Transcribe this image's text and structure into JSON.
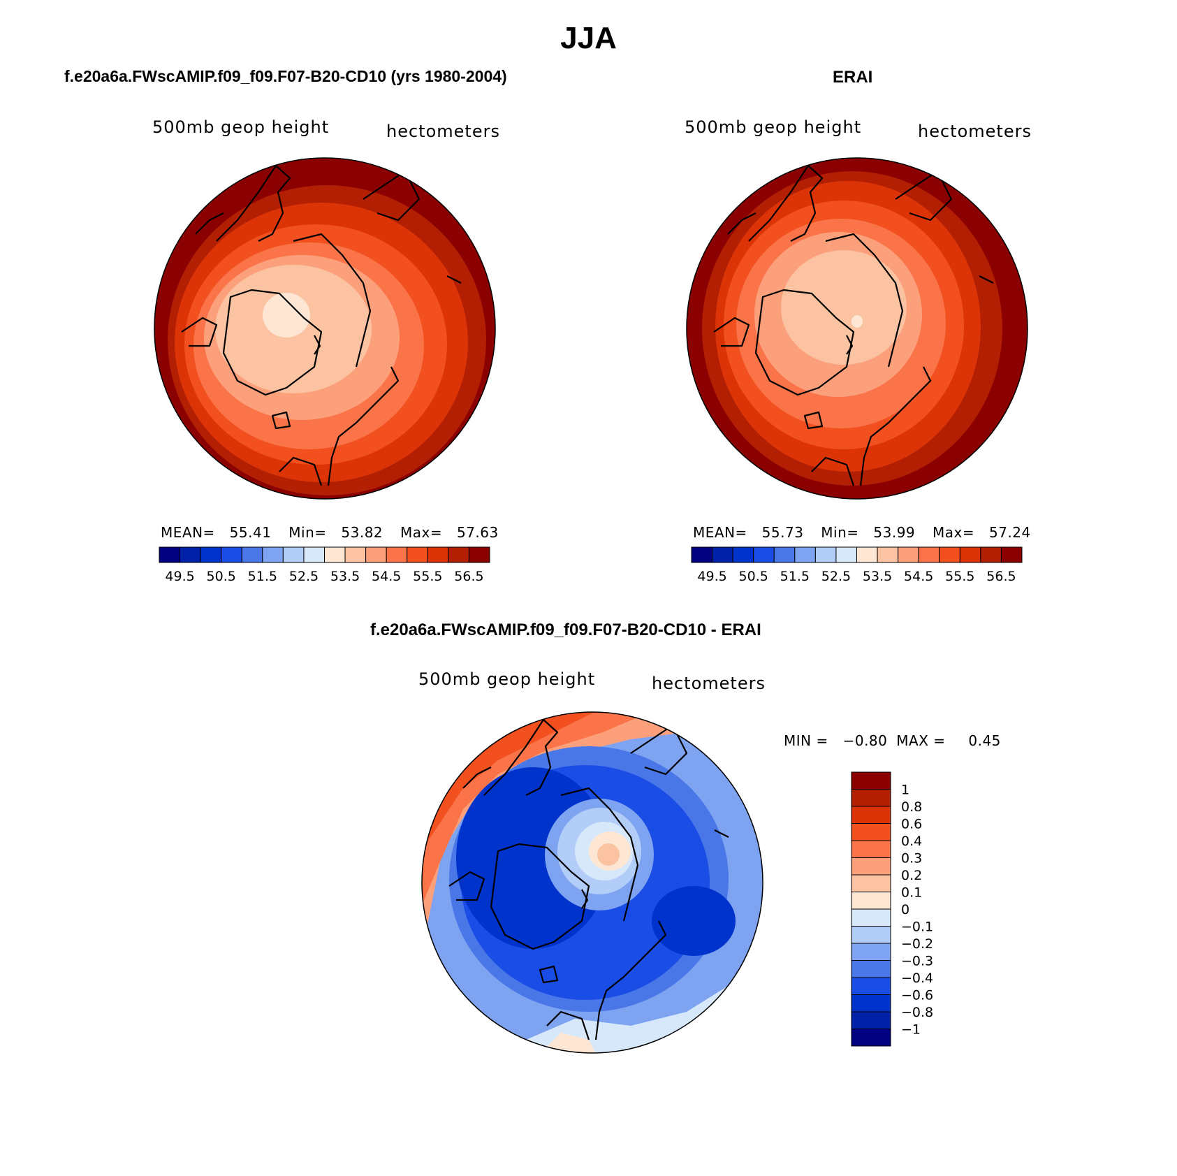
{
  "season": "JJA",
  "panels": [
    {
      "title": "f.e20a6a.FWscAMIP.f09_f09.F07-B20-CD10 (yrs 1980-2004)",
      "variable": "500mb geop height",
      "units": "hectometers",
      "stats": {
        "mean_label": "MEAN=",
        "mean": "55.41",
        "min_label": "Min=",
        "min": "53.82",
        "max_label": "Max=",
        "max": "57.63"
      }
    },
    {
      "title": "ERAI",
      "variable": "500mb geop height",
      "units": "hectometers",
      "stats": {
        "mean_label": "MEAN=",
        "mean": "55.73",
        "min_label": "Min=",
        "min": "53.99",
        "max_label": "Max=",
        "max": "57.24"
      }
    },
    {
      "title": "f.e20a6a.FWscAMIP.f09_f09.F07-B20-CD10 - ERAI",
      "variable": "500mb geop height",
      "units": "hectometers",
      "stats": {
        "min_label": "MIN =",
        "min": "−0.80",
        "max_label": "MAX =",
        "max": "0.45"
      }
    }
  ],
  "abs_colorbar": {
    "colors": [
      "#000080",
      "#0020a8",
      "#0033cc",
      "#1a4de6",
      "#4a77e8",
      "#7ea3f0",
      "#b2cdf8",
      "#d8e8fb",
      "#fde6d3",
      "#fcc3a2",
      "#fca07c",
      "#fb7449",
      "#f2501f",
      "#dc3406",
      "#b21f03",
      "#8b0000"
    ],
    "labels": [
      "49.5",
      "50.5",
      "51.5",
      "52.5",
      "53.5",
      "54.5",
      "55.5",
      "56.5"
    ]
  },
  "diff_colorbar": {
    "colors": [
      "#8b0000",
      "#b21f03",
      "#dc3406",
      "#f2501f",
      "#fb7449",
      "#fca07c",
      "#fcc3a2",
      "#fde6d3",
      "#d8e8fb",
      "#b2cdf8",
      "#7ea3f0",
      "#4a77e8",
      "#1a4de6",
      "#0033cc",
      "#0020a8",
      "#000080"
    ],
    "labels": [
      "1",
      "0.8",
      "0.6",
      "0.4",
      "0.3",
      "0.2",
      "0.1",
      "0",
      "−0.1",
      "−0.2",
      "−0.3",
      "−0.4",
      "−0.6",
      "−0.8",
      "−1"
    ]
  }
}
